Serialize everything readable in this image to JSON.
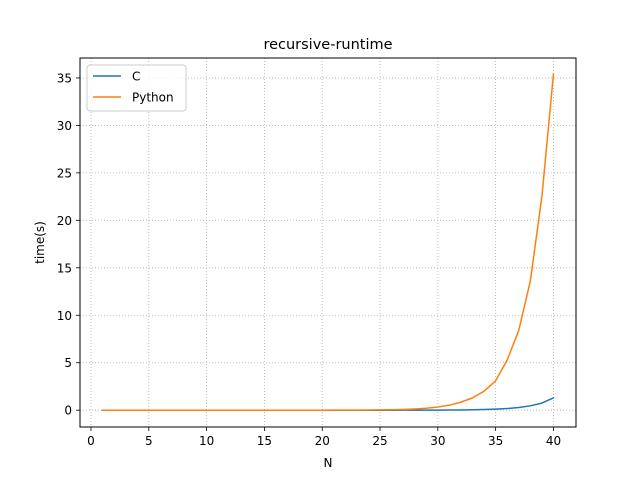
{
  "chart_data": {
    "type": "line",
    "title": "recursive-runtime",
    "xlabel": "N",
    "ylabel": "time(s)",
    "xlim": [
      -0.95,
      41.95
    ],
    "ylim": [
      -1.77,
      37.1
    ],
    "xticks": [
      0,
      5,
      10,
      15,
      20,
      25,
      30,
      35,
      40
    ],
    "yticks": [
      0,
      5,
      10,
      15,
      20,
      25,
      30,
      35
    ],
    "grid": true,
    "legend_position": "upper-left",
    "x": [
      1,
      2,
      3,
      4,
      5,
      6,
      7,
      8,
      9,
      10,
      11,
      12,
      13,
      14,
      15,
      16,
      17,
      18,
      19,
      20,
      21,
      22,
      23,
      24,
      25,
      26,
      27,
      28,
      29,
      30,
      31,
      32,
      33,
      34,
      35,
      36,
      37,
      38,
      39,
      40
    ],
    "series": [
      {
        "name": "C",
        "color": "#1f77b4",
        "values": [
          0,
          0,
          0,
          0,
          0,
          0,
          0,
          0,
          0,
          0,
          0,
          0,
          0,
          0,
          0,
          0,
          0,
          0,
          0,
          0,
          0,
          0,
          0,
          0,
          0,
          0.001,
          0.002,
          0.004,
          0.006,
          0.01,
          0.016,
          0.026,
          0.042,
          0.067,
          0.109,
          0.176,
          0.285,
          0.461,
          0.745,
          1.3
        ]
      },
      {
        "name": "Python",
        "color": "#ff7f0e",
        "values": [
          0,
          0,
          0,
          0,
          0,
          0,
          0,
          0,
          0,
          0,
          0,
          0,
          0,
          0,
          0,
          0,
          0,
          0,
          0,
          0,
          0.005,
          0.008,
          0.013,
          0.02,
          0.03,
          0.05,
          0.08,
          0.13,
          0.2,
          0.33,
          0.53,
          0.85,
          1.3,
          2.0,
          3.1,
          5.3,
          8.4,
          13.6,
          22.5,
          35.4
        ]
      }
    ]
  }
}
